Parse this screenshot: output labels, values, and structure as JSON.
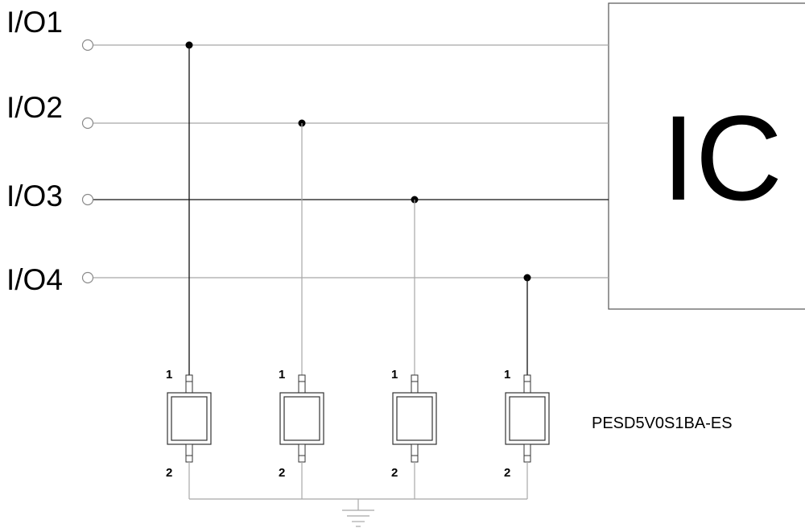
{
  "io_lines": [
    {
      "label": "I/O1"
    },
    {
      "label": "I/O2"
    },
    {
      "label": "I/O3"
    },
    {
      "label": "I/O4"
    }
  ],
  "ic": {
    "label": "IC"
  },
  "diodes": [
    {
      "pin_top": "1",
      "pin_bottom": "2"
    },
    {
      "pin_top": "1",
      "pin_bottom": "2"
    },
    {
      "pin_top": "1",
      "pin_bottom": "2"
    },
    {
      "pin_top": "1",
      "pin_bottom": "2"
    }
  ],
  "part_number": "PESD5V0S1BA-ES"
}
